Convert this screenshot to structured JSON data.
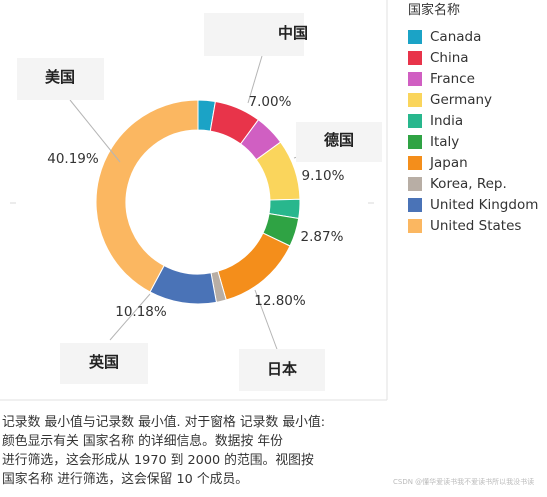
{
  "chart_data": {
    "type": "pie",
    "donut": true,
    "legend_title": "国家名称",
    "legend_position": "right",
    "slices": [
      {
        "name": "Canada",
        "value": 2.6,
        "color": "#1ba3c6"
      },
      {
        "name": "China",
        "value": 7.0,
        "label": "7.00%",
        "color": "#e8344a"
      },
      {
        "name": "France",
        "value": 4.7,
        "color": "#d05fc2"
      },
      {
        "name": "Germany",
        "value": 9.1,
        "label": "9.10%",
        "color": "#fad55c"
      },
      {
        "name": "India",
        "value": 2.87,
        "label": "2.87%",
        "color": "#28b78d"
      },
      {
        "name": "Italy",
        "value": 4.3,
        "color": "#2fa344"
      },
      {
        "name": "Japan",
        "value": 12.8,
        "label": "12.80%",
        "color": "#f48e1b"
      },
      {
        "name": "Korea, Rep.",
        "value": 1.5,
        "color": "#b8aea5"
      },
      {
        "name": "United Kingdom",
        "value": 10.18,
        "label": "10.18%",
        "color": "#4a73b7"
      },
      {
        "name": "United States",
        "value": 40.19,
        "label": "40.19%",
        "color": "#fbb761"
      }
    ],
    "callouts": [
      "中国",
      "德国",
      "美国",
      "英国",
      "日本"
    ]
  },
  "caption": [
    "记录数 最小值与记录数 最小值. 对于窗格 记录数 最小值:",
    "颜色显示有关 国家名称 的详细信息。数据按 年份",
    "进行筛选，这会形成从 1970 到 2000 的范围。视图按",
    "国家名称 进行筛选，这会保留 10 个成员。"
  ],
  "watermark": "CSDN @懂华爱读书我不爱读书所以我没书读"
}
